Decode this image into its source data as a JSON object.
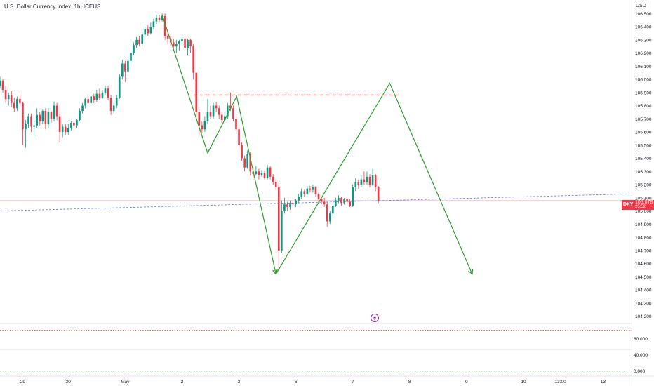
{
  "header": {
    "title": "U.S. Dollar Currency Index, 1h, ICEUS"
  },
  "price_scale": {
    "currency": "USD"
  },
  "last_price_badge": {
    "symbol": "DXY",
    "value": "105.078",
    "countdown": "25:52"
  },
  "icons": {
    "event_marker": "lightning-bolt-icon"
  },
  "colors": {
    "up": "#089981",
    "down": "#f23645",
    "pattern_line": "#2e9e2e",
    "resistance": "#e53935",
    "trend": "#5b7cff",
    "last_price_line": "#f5a3a8",
    "oscillator_level": "#e53935",
    "oscillator_zero": "#2e7d32"
  },
  "chart_data": [
    {
      "type": "candlestick",
      "title": "U.S. Dollar Currency Index, 1h, ICEUS",
      "y_ticks": [
        "104.200",
        "104.300",
        "104.400",
        "104.500",
        "104.600",
        "104.700",
        "104.800",
        "104.900",
        "105.000",
        "105.100",
        "105.200",
        "105.300",
        "105.400",
        "105.500",
        "105.600",
        "105.700",
        "105.800",
        "105.900",
        "106.000",
        "106.100",
        "106.200",
        "106.300",
        "106.400",
        "106.500"
      ],
      "ylim": [
        104.15,
        106.56
      ],
      "x_ticks": [
        {
          "label": "29",
          "x": 0.2
        },
        {
          "label": "30",
          "x": 1.0
        },
        {
          "label": "May",
          "x": 2.0
        },
        {
          "label": "2",
          "x": 3.0
        },
        {
          "label": "3",
          "x": 4.0
        },
        {
          "label": "6",
          "x": 5.0
        },
        {
          "label": "7",
          "x": 6.0
        },
        {
          "label": "8",
          "x": 7.0
        },
        {
          "label": "9",
          "x": 8.0
        },
        {
          "label": "10",
          "x": 9.0
        },
        {
          "label": "13:00",
          "x": 9.65
        },
        {
          "label": "13",
          "x": 10.4
        }
      ],
      "x_range": [
        -0.2,
        10.9
      ],
      "candles": [
        [
          -0.2,
          105.95,
          105.99,
          106.02,
          105.93
        ],
        [
          -0.15,
          105.99,
          105.92,
          106.0,
          105.9
        ],
        [
          -0.1,
          105.92,
          105.85,
          105.95,
          105.82
        ],
        [
          -0.05,
          105.85,
          105.88,
          105.9,
          105.8
        ],
        [
          0.0,
          105.88,
          105.82,
          105.91,
          105.79
        ],
        [
          0.05,
          105.82,
          105.78,
          105.86,
          105.75
        ],
        [
          0.1,
          105.78,
          105.85,
          105.87,
          105.76
        ],
        [
          0.15,
          105.85,
          105.82,
          105.89,
          105.8
        ],
        [
          0.2,
          105.82,
          105.62,
          105.83,
          105.5
        ],
        [
          0.25,
          105.62,
          105.66,
          105.69,
          105.48
        ],
        [
          0.3,
          105.66,
          105.72,
          105.74,
          105.63
        ],
        [
          0.35,
          105.72,
          105.64,
          105.74,
          105.6
        ],
        [
          0.4,
          105.64,
          105.65,
          105.68,
          105.55
        ],
        [
          0.45,
          105.65,
          105.73,
          105.78,
          105.63
        ],
        [
          0.5,
          105.73,
          105.68,
          105.75,
          105.65
        ],
        [
          0.55,
          105.68,
          105.76,
          105.77,
          105.66
        ],
        [
          0.6,
          105.76,
          105.66,
          105.78,
          105.62
        ],
        [
          0.65,
          105.66,
          105.75,
          105.78,
          105.63
        ],
        [
          0.7,
          105.75,
          105.7,
          105.76,
          105.67
        ],
        [
          0.75,
          105.7,
          105.8,
          105.83,
          105.68
        ],
        [
          0.8,
          105.8,
          105.72,
          105.82,
          105.69
        ],
        [
          0.85,
          105.72,
          105.6,
          105.74,
          105.52
        ],
        [
          0.9,
          105.6,
          105.64,
          105.66,
          105.56
        ],
        [
          0.95,
          105.64,
          105.6,
          105.66,
          105.58
        ],
        [
          1.0,
          105.6,
          105.63,
          105.66,
          105.58
        ],
        [
          1.05,
          105.63,
          105.67,
          105.68,
          105.61
        ],
        [
          1.1,
          105.67,
          105.65,
          105.69,
          105.62
        ],
        [
          1.15,
          105.65,
          105.69,
          105.7,
          105.63
        ],
        [
          1.2,
          105.69,
          105.76,
          105.78,
          105.68
        ],
        [
          1.25,
          105.76,
          105.8,
          105.82,
          105.74
        ],
        [
          1.3,
          105.8,
          105.85,
          105.86,
          105.78
        ],
        [
          1.35,
          105.85,
          105.82,
          105.88,
          105.8
        ],
        [
          1.4,
          105.82,
          105.87,
          105.88,
          105.81
        ],
        [
          1.45,
          105.87,
          105.84,
          105.89,
          105.82
        ],
        [
          1.5,
          105.84,
          105.89,
          105.92,
          105.83
        ],
        [
          1.55,
          105.89,
          105.86,
          105.93,
          105.84
        ],
        [
          1.6,
          105.86,
          105.9,
          105.92,
          105.85
        ],
        [
          1.65,
          105.9,
          105.93,
          105.95,
          105.88
        ],
        [
          1.7,
          105.93,
          105.86,
          105.95,
          105.84
        ],
        [
          1.75,
          105.86,
          105.76,
          105.88,
          105.73
        ],
        [
          1.8,
          105.76,
          105.8,
          105.82,
          105.74
        ],
        [
          1.85,
          105.8,
          105.86,
          105.88,
          105.78
        ],
        [
          1.9,
          105.86,
          106.02,
          106.04,
          105.85
        ],
        [
          1.95,
          106.02,
          106.12,
          106.15,
          106.0
        ],
        [
          2.0,
          106.12,
          106.06,
          106.14,
          105.98
        ],
        [
          2.05,
          106.06,
          106.14,
          106.16,
          106.04
        ],
        [
          2.1,
          106.14,
          106.2,
          106.22,
          106.12
        ],
        [
          2.15,
          106.2,
          106.26,
          106.28,
          106.18
        ],
        [
          2.2,
          106.26,
          106.3,
          106.32,
          106.24
        ],
        [
          2.25,
          106.3,
          106.27,
          106.33,
          106.25
        ],
        [
          2.3,
          106.27,
          106.34,
          106.36,
          106.25
        ],
        [
          2.35,
          106.34,
          106.38,
          106.4,
          106.32
        ],
        [
          2.4,
          106.38,
          106.35,
          106.41,
          106.33
        ],
        [
          2.45,
          106.35,
          106.4,
          106.43,
          106.34
        ],
        [
          2.5,
          106.4,
          106.44,
          106.46,
          106.38
        ],
        [
          2.55,
          106.44,
          106.47,
          106.49,
          106.42
        ],
        [
          2.6,
          106.47,
          106.45,
          106.49,
          106.43
        ],
        [
          2.65,
          106.45,
          106.48,
          106.5,
          106.44
        ],
        [
          2.7,
          106.48,
          106.33,
          106.5,
          106.3
        ],
        [
          2.75,
          106.33,
          106.31,
          106.36,
          106.27
        ],
        [
          2.8,
          106.31,
          106.28,
          106.34,
          106.25
        ],
        [
          2.85,
          106.28,
          106.25,
          106.31,
          106.22
        ],
        [
          2.9,
          106.25,
          106.27,
          106.3,
          106.2
        ],
        [
          2.95,
          106.27,
          106.29,
          106.3,
          106.22
        ],
        [
          3.0,
          106.29,
          106.31,
          106.32,
          106.26
        ],
        [
          3.05,
          106.31,
          106.24,
          106.33,
          106.22
        ],
        [
          3.1,
          106.24,
          106.3,
          106.31,
          106.18
        ],
        [
          3.15,
          106.3,
          106.25,
          106.31,
          106.2
        ],
        [
          3.2,
          106.25,
          106.05,
          106.27,
          106.0
        ],
        [
          3.25,
          106.05,
          105.75,
          106.06,
          105.7
        ],
        [
          3.3,
          105.75,
          105.65,
          105.77,
          105.58
        ],
        [
          3.35,
          105.65,
          105.62,
          105.68,
          105.59
        ],
        [
          3.4,
          105.62,
          105.68,
          105.72,
          105.6
        ],
        [
          3.45,
          105.68,
          105.75,
          105.85,
          105.66
        ],
        [
          3.5,
          105.75,
          105.72,
          105.8,
          105.7
        ],
        [
          3.55,
          105.72,
          105.8,
          105.82,
          105.7
        ],
        [
          3.6,
          105.8,
          105.78,
          105.83,
          105.75
        ],
        [
          3.65,
          105.78,
          105.73,
          105.8,
          105.7
        ],
        [
          3.7,
          105.73,
          105.69,
          105.75,
          105.67
        ],
        [
          3.75,
          105.69,
          105.72,
          105.75,
          105.68
        ],
        [
          3.8,
          105.72,
          105.8,
          105.82,
          105.7
        ],
        [
          3.85,
          105.8,
          105.78,
          105.9,
          105.76
        ],
        [
          3.9,
          105.78,
          105.7,
          105.8,
          105.68
        ],
        [
          3.95,
          105.7,
          105.62,
          105.72,
          105.6
        ],
        [
          4.0,
          105.62,
          105.5,
          105.64,
          105.48
        ],
        [
          4.05,
          105.5,
          105.4,
          105.52,
          105.38
        ],
        [
          4.1,
          105.4,
          105.33,
          105.42,
          105.3
        ],
        [
          4.15,
          105.33,
          105.43,
          105.46,
          105.32
        ],
        [
          4.2,
          105.43,
          105.3,
          105.45,
          105.27
        ],
        [
          4.25,
          105.3,
          105.28,
          105.33,
          105.25
        ],
        [
          4.3,
          105.28,
          105.3,
          105.34,
          105.27
        ],
        [
          4.35,
          105.3,
          105.27,
          105.32,
          105.24
        ],
        [
          4.4,
          105.27,
          105.29,
          105.31,
          105.26
        ],
        [
          4.45,
          105.29,
          105.25,
          105.31,
          105.24
        ],
        [
          4.5,
          105.25,
          105.33,
          105.35,
          105.24
        ],
        [
          4.55,
          105.33,
          105.26,
          105.34,
          105.24
        ],
        [
          4.6,
          105.26,
          105.22,
          105.28,
          105.2
        ],
        [
          4.65,
          105.22,
          105.18,
          105.24,
          105.16
        ],
        [
          4.7,
          105.18,
          104.7,
          105.2,
          104.55
        ],
        [
          4.75,
          104.7,
          105.0,
          105.08,
          104.68
        ],
        [
          4.8,
          105.0,
          105.05,
          105.1,
          104.98
        ],
        [
          4.85,
          105.05,
          105.03,
          105.07,
          105.0
        ],
        [
          4.9,
          105.03,
          105.06,
          105.08,
          105.01
        ],
        [
          4.95,
          105.06,
          105.05,
          105.07,
          105.03
        ],
        [
          5.0,
          105.05,
          105.08,
          105.09,
          105.03
        ],
        [
          5.05,
          105.08,
          105.11,
          105.13,
          105.06
        ],
        [
          5.1,
          105.11,
          105.15,
          105.17,
          105.09
        ],
        [
          5.15,
          105.15,
          105.13,
          105.16,
          105.11
        ],
        [
          5.2,
          105.13,
          105.17,
          105.19,
          105.12
        ],
        [
          5.25,
          105.17,
          105.16,
          105.19,
          105.14
        ],
        [
          5.3,
          105.16,
          105.18,
          105.2,
          105.14
        ],
        [
          5.35,
          105.18,
          105.13,
          105.19,
          105.11
        ],
        [
          5.4,
          105.13,
          105.09,
          105.14,
          105.06
        ],
        [
          5.45,
          105.09,
          105.07,
          105.11,
          105.05
        ],
        [
          5.5,
          105.07,
          105.05,
          105.1,
          105.03
        ],
        [
          5.55,
          105.05,
          104.92,
          105.07,
          104.88
        ],
        [
          5.6,
          104.92,
          104.98,
          105.0,
          104.9
        ],
        [
          5.65,
          104.98,
          105.04,
          105.06,
          104.96
        ],
        [
          5.7,
          105.04,
          105.08,
          105.1,
          105.03
        ],
        [
          5.75,
          105.08,
          105.1,
          105.12,
          105.06
        ],
        [
          5.8,
          105.1,
          105.06,
          105.11,
          105.04
        ],
        [
          5.85,
          105.06,
          105.09,
          105.1,
          105.05
        ],
        [
          5.9,
          105.09,
          105.07,
          105.1,
          105.05
        ],
        [
          5.95,
          105.07,
          105.04,
          105.09,
          105.03
        ],
        [
          6.0,
          105.04,
          105.18,
          105.2,
          105.03
        ],
        [
          6.05,
          105.18,
          105.22,
          105.25,
          105.15
        ],
        [
          6.1,
          105.22,
          105.2,
          105.24,
          105.17
        ],
        [
          6.15,
          105.2,
          105.24,
          105.27,
          105.18
        ],
        [
          6.2,
          105.24,
          105.22,
          105.3,
          105.2
        ],
        [
          6.25,
          105.22,
          105.26,
          105.3,
          105.2
        ],
        [
          6.3,
          105.26,
          105.2,
          105.28,
          105.18
        ],
        [
          6.35,
          105.2,
          105.27,
          105.32,
          105.19
        ],
        [
          6.4,
          105.27,
          105.18,
          105.28,
          105.15
        ],
        [
          6.45,
          105.18,
          105.08,
          105.19,
          105.06
        ]
      ],
      "annotations": {
        "pattern_path": [
          [
            2.65,
            106.49
          ],
          [
            3.45,
            105.44
          ],
          [
            3.96,
            105.87
          ],
          [
            4.65,
            104.52
          ],
          [
            6.65,
            105.97
          ],
          [
            8.1,
            104.52
          ]
        ],
        "resistance": {
          "y": 105.88,
          "x0": 3.2,
          "x1": 6.8
        },
        "trend_line": {
          "x0": -0.2,
          "y0": 105.0,
          "x1": 10.9,
          "y1": 105.13
        },
        "last_price_line": 105.078
      }
    },
    {
      "type": "line",
      "title": "",
      "y_ticks": [
        "80.000",
        "40.000",
        "0.000"
      ],
      "levels": [
        100,
        0
      ],
      "ylim": [
        -4,
        110
      ]
    }
  ]
}
